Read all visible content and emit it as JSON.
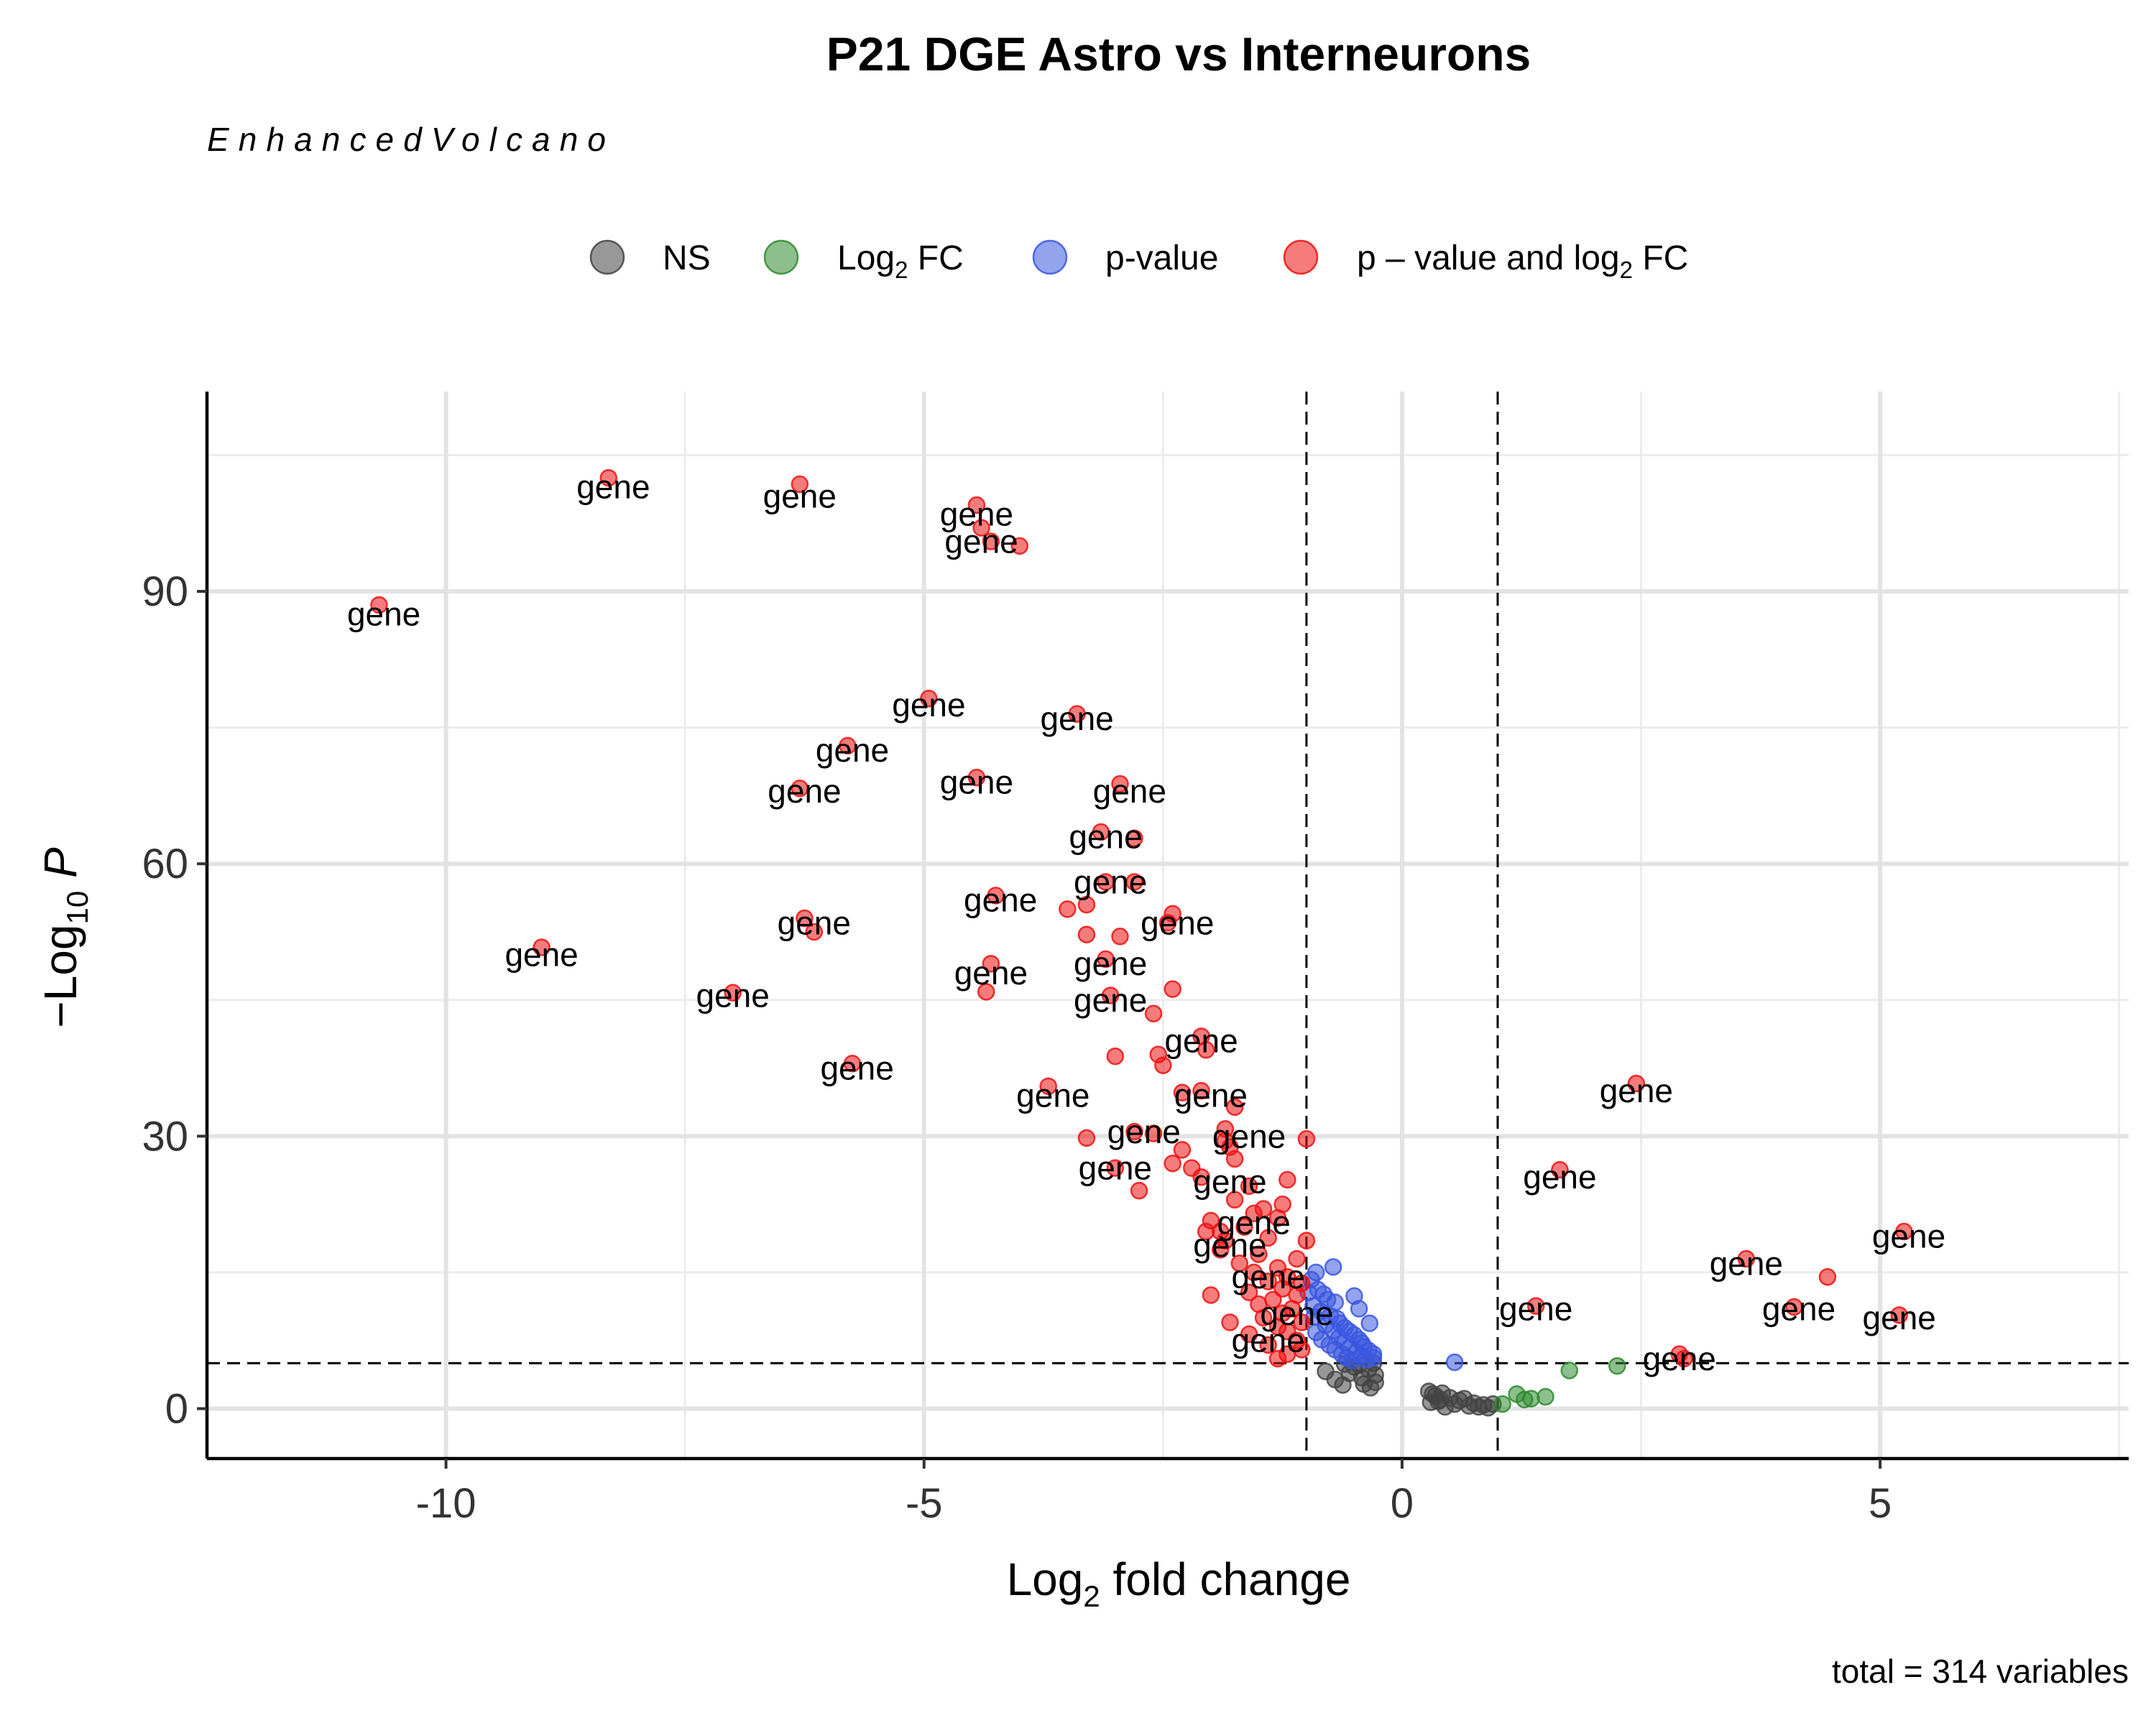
{
  "chart_data": {
    "type": "scatter",
    "title": "P21 DGE Astro vs Interneurons",
    "subtitle": "EnhancedVolcano",
    "caption": "total = 314 variables",
    "xlabel": {
      "prefix": "Log",
      "sub": "2",
      "suffix": " fold change"
    },
    "ylabel": {
      "prefix": "−Log",
      "sub": "10",
      "suffix": " P"
    },
    "xlim": [
      -12.5,
      7.6
    ],
    "ylim": [
      -5.5,
      112
    ],
    "x_ticks": [
      -10,
      -5,
      0,
      5
    ],
    "x_tick_labels": [
      "-10",
      "-5",
      "0",
      "5"
    ],
    "y_ticks": [
      0,
      30,
      60,
      90
    ],
    "y_tick_labels": [
      "0",
      "30",
      "60",
      "90"
    ],
    "grid": true,
    "legend_position": "top",
    "cutoffs": {
      "log2fc": [
        -1,
        1
      ],
      "neg_log10_p": 5
    },
    "colors": {
      "NS": "#444444",
      "Log2FC": "#2f8a2f",
      "pvalue": "#3a57e0",
      "both": "#ee1111"
    },
    "legend": [
      {
        "key": "NS",
        "text": "NS",
        "sub": "",
        "after": ""
      },
      {
        "key": "Log2FC",
        "text": "Log",
        "sub": "2",
        "after": " FC"
      },
      {
        "key": "pvalue",
        "text": "p-value",
        "sub": "",
        "after": ""
      },
      {
        "key": "both",
        "text": "p – value and log",
        "sub": "2",
        "after": " FC"
      }
    ],
    "point_label": "gene",
    "series": [
      {
        "name": "NS",
        "points": [
          [
            -0.3,
            5.0
          ],
          [
            -0.35,
            4.3
          ],
          [
            -0.28,
            3.7
          ],
          [
            -0.42,
            3.4
          ],
          [
            -0.5,
            4.6
          ],
          [
            -0.55,
            3.9
          ],
          [
            -0.6,
            4.9
          ],
          [
            -0.4,
            2.7
          ],
          [
            -0.33,
            2.3
          ],
          [
            -0.7,
            3.2
          ],
          [
            -0.62,
            2.6
          ],
          [
            -0.8,
            4.1
          ],
          [
            -0.28,
            2.9
          ],
          [
            -0.45,
            4.8
          ],
          [
            0.28,
            1.9
          ],
          [
            0.35,
            1.4
          ],
          [
            0.4,
            1.0
          ],
          [
            0.3,
            0.7
          ],
          [
            0.5,
            1.2
          ],
          [
            0.55,
            0.5
          ],
          [
            0.6,
            0.9
          ],
          [
            0.7,
            0.3
          ],
          [
            0.75,
            0.6
          ],
          [
            0.85,
            0.4
          ],
          [
            0.9,
            0.1
          ],
          [
            0.45,
            0.2
          ],
          [
            0.32,
            1.6
          ],
          [
            0.38,
            0.8
          ],
          [
            0.65,
            1.1
          ],
          [
            0.8,
            0.2
          ],
          [
            0.95,
            0.5
          ],
          [
            0.42,
            1.7
          ]
        ]
      },
      {
        "name": "Log2FC",
        "points": [
          [
            1.05,
            0.5
          ],
          [
            1.2,
            1.6
          ],
          [
            1.28,
            1.0
          ],
          [
            1.35,
            1.1
          ],
          [
            1.5,
            1.3
          ],
          [
            1.75,
            4.2
          ],
          [
            2.25,
            4.7
          ]
        ]
      },
      {
        "name": "pvalue",
        "points": [
          [
            -0.9,
            15.0
          ],
          [
            -0.72,
            15.6
          ],
          [
            -0.95,
            14.2
          ],
          [
            -0.88,
            13.1
          ],
          [
            -0.82,
            12.6
          ],
          [
            -0.78,
            12.0
          ],
          [
            -0.7,
            11.7
          ],
          [
            -0.93,
            11.3
          ],
          [
            -0.85,
            10.7
          ],
          [
            -0.75,
            10.2
          ],
          [
            -0.68,
            9.9
          ],
          [
            -0.65,
            9.4
          ],
          [
            -0.6,
            8.9
          ],
          [
            -0.55,
            8.5
          ],
          [
            -0.5,
            8.1
          ],
          [
            -0.45,
            7.6
          ],
          [
            -0.42,
            7.2
          ],
          [
            -0.4,
            6.8
          ],
          [
            -0.35,
            6.4
          ],
          [
            -0.3,
            6.0
          ],
          [
            -0.3,
            5.6
          ],
          [
            -0.98,
            12.8
          ],
          [
            -0.92,
            10.1
          ],
          [
            -0.8,
            9.2
          ],
          [
            -0.72,
            8.6
          ],
          [
            -0.66,
            7.8
          ],
          [
            -0.6,
            7.3
          ],
          [
            -0.55,
            6.7
          ],
          [
            -0.48,
            6.2
          ],
          [
            -0.43,
            5.8
          ],
          [
            -0.38,
            5.4
          ],
          [
            -0.9,
            8.4
          ],
          [
            -0.84,
            7.6
          ],
          [
            -0.76,
            7.0
          ],
          [
            -0.7,
            6.5
          ],
          [
            -0.63,
            6.0
          ],
          [
            -0.58,
            5.6
          ],
          [
            -0.52,
            5.3
          ],
          [
            -0.34,
            9.4
          ],
          [
            -0.45,
            11.0
          ],
          [
            -0.5,
            12.4
          ],
          [
            0.55,
            5.1
          ]
        ]
      },
      {
        "name": "both",
        "points": [
          [
            -10.7,
            88.5
          ],
          [
            -8.3,
            102.5
          ],
          [
            -6.3,
            101.8
          ],
          [
            -4.45,
            99.5
          ],
          [
            -4.4,
            97.0
          ],
          [
            -4.3,
            95.5
          ],
          [
            -4.0,
            95.0
          ],
          [
            -4.95,
            78.2
          ],
          [
            -3.4,
            76.5
          ],
          [
            -5.8,
            73.0
          ],
          [
            -6.3,
            68.3
          ],
          [
            -4.45,
            69.5
          ],
          [
            -2.95,
            68.8
          ],
          [
            -3.15,
            63.5
          ],
          [
            -2.8,
            62.8
          ],
          [
            -3.1,
            58.0
          ],
          [
            -2.8,
            58.0
          ],
          [
            -4.25,
            56.5
          ],
          [
            -3.3,
            55.5
          ],
          [
            -3.5,
            55.0
          ],
          [
            -2.4,
            54.5
          ],
          [
            -2.45,
            53.5
          ],
          [
            -6.25,
            54.0
          ],
          [
            -6.15,
            52.5
          ],
          [
            -3.3,
            52.2
          ],
          [
            -2.95,
            52.0
          ],
          [
            -9.0,
            50.8
          ],
          [
            -3.1,
            49.5
          ],
          [
            -4.3,
            49.0
          ],
          [
            -7.0,
            45.8
          ],
          [
            -3.05,
            45.5
          ],
          [
            -4.35,
            45.9
          ],
          [
            -2.4,
            46.2
          ],
          [
            -2.6,
            43.5
          ],
          [
            -2.1,
            41.0
          ],
          [
            -2.05,
            39.5
          ],
          [
            -2.55,
            39.0
          ],
          [
            -3.0,
            38.8
          ],
          [
            -2.5,
            37.8
          ],
          [
            -5.75,
            38.0
          ],
          [
            -3.7,
            35.5
          ],
          [
            -2.3,
            34.8
          ],
          [
            -2.1,
            35.0
          ],
          [
            -1.75,
            33.2
          ],
          [
            -3.3,
            29.8
          ],
          [
            -2.8,
            30.5
          ],
          [
            -2.6,
            30.3
          ],
          [
            -1.85,
            30.8
          ],
          [
            -1.85,
            29.5
          ],
          [
            -1.0,
            29.7
          ],
          [
            -2.3,
            28.5
          ],
          [
            -1.8,
            28.8
          ],
          [
            -1.75,
            27.5
          ],
          [
            -2.4,
            27.0
          ],
          [
            -2.2,
            26.5
          ],
          [
            -3.0,
            26.5
          ],
          [
            -2.1,
            25.5
          ],
          [
            -1.2,
            25.2
          ],
          [
            -1.6,
            24.5
          ],
          [
            -2.75,
            24.0
          ],
          [
            -1.75,
            23.0
          ],
          [
            -1.45,
            22.0
          ],
          [
            -1.25,
            22.5
          ],
          [
            -1.3,
            21.0
          ],
          [
            -2.0,
            20.7
          ],
          [
            -1.65,
            20.0
          ],
          [
            -2.05,
            19.5
          ],
          [
            -1.85,
            18.5
          ],
          [
            -1.4,
            18.8
          ],
          [
            -1.0,
            18.5
          ],
          [
            -1.9,
            17.5
          ],
          [
            -1.5,
            17.0
          ],
          [
            -1.1,
            16.5
          ],
          [
            -1.7,
            16.0
          ],
          [
            -1.3,
            15.5
          ],
          [
            -1.55,
            15.0
          ],
          [
            -1.2,
            14.5
          ],
          [
            -1.4,
            14.0
          ],
          [
            -1.05,
            13.8
          ],
          [
            -1.25,
            13.2
          ],
          [
            -1.6,
            12.8
          ],
          [
            -1.1,
            12.5
          ],
          [
            -1.35,
            12.0
          ],
          [
            -1.5,
            11.5
          ],
          [
            -1.15,
            11.0
          ],
          [
            -1.25,
            10.5
          ],
          [
            -1.45,
            10.0
          ],
          [
            -1.05,
            9.5
          ],
          [
            -1.3,
            9.0
          ],
          [
            -1.2,
            8.5
          ],
          [
            -1.6,
            8.2
          ],
          [
            -1.1,
            7.5
          ],
          [
            -1.4,
            7.0
          ],
          [
            -1.05,
            6.5
          ],
          [
            -1.2,
            6.0
          ],
          [
            -1.3,
            5.5
          ],
          [
            -1.8,
            9.5
          ],
          [
            -2.0,
            12.5
          ],
          [
            -1.9,
            19.5
          ],
          [
            -1.55,
            21.5
          ],
          [
            2.45,
            35.8
          ],
          [
            1.65,
            26.3
          ],
          [
            5.25,
            19.5
          ],
          [
            3.6,
            16.5
          ],
          [
            4.45,
            14.5
          ],
          [
            1.4,
            11.3
          ],
          [
            4.1,
            11.2
          ],
          [
            5.2,
            10.3
          ],
          [
            2.9,
            6.0
          ],
          [
            2.95,
            5.5
          ]
        ]
      }
    ],
    "labels": [
      [
        -10.65,
        87.5
      ],
      [
        -8.25,
        101.5
      ],
      [
        -6.3,
        100.5
      ],
      [
        -4.45,
        98.5
      ],
      [
        -4.4,
        95.5
      ],
      [
        -4.95,
        77.5
      ],
      [
        -3.4,
        76.0
      ],
      [
        -5.75,
        72.5
      ],
      [
        -6.25,
        68.0
      ],
      [
        -4.45,
        69.0
      ],
      [
        -2.85,
        68.0
      ],
      [
        -3.1,
        63.0
      ],
      [
        -3.05,
        58.0
      ],
      [
        -4.2,
        56.0
      ],
      [
        -2.35,
        53.5
      ],
      [
        -6.15,
        53.5
      ],
      [
        -9.0,
        50.0
      ],
      [
        -3.05,
        49.0
      ],
      [
        -4.3,
        48.0
      ],
      [
        -7.0,
        45.5
      ],
      [
        -3.05,
        45.0
      ],
      [
        -2.1,
        40.5
      ],
      [
        -5.7,
        37.5
      ],
      [
        -3.65,
        34.5
      ],
      [
        -2.0,
        34.5
      ],
      [
        -2.7,
        30.5
      ],
      [
        -1.6,
        30.0
      ],
      [
        -3.0,
        26.5
      ],
      [
        -1.8,
        25.0
      ],
      [
        -1.55,
        20.5
      ],
      [
        -1.8,
        18.0
      ],
      [
        -1.4,
        14.5
      ],
      [
        -1.1,
        10.5
      ],
      [
        -1.4,
        7.5
      ],
      [
        2.45,
        35.0
      ],
      [
        1.65,
        25.5
      ],
      [
        5.3,
        19.0
      ],
      [
        3.6,
        16.0
      ],
      [
        4.15,
        11.0
      ],
      [
        1.4,
        11.0
      ],
      [
        5.2,
        10.0
      ],
      [
        2.9,
        5.5
      ]
    ]
  }
}
